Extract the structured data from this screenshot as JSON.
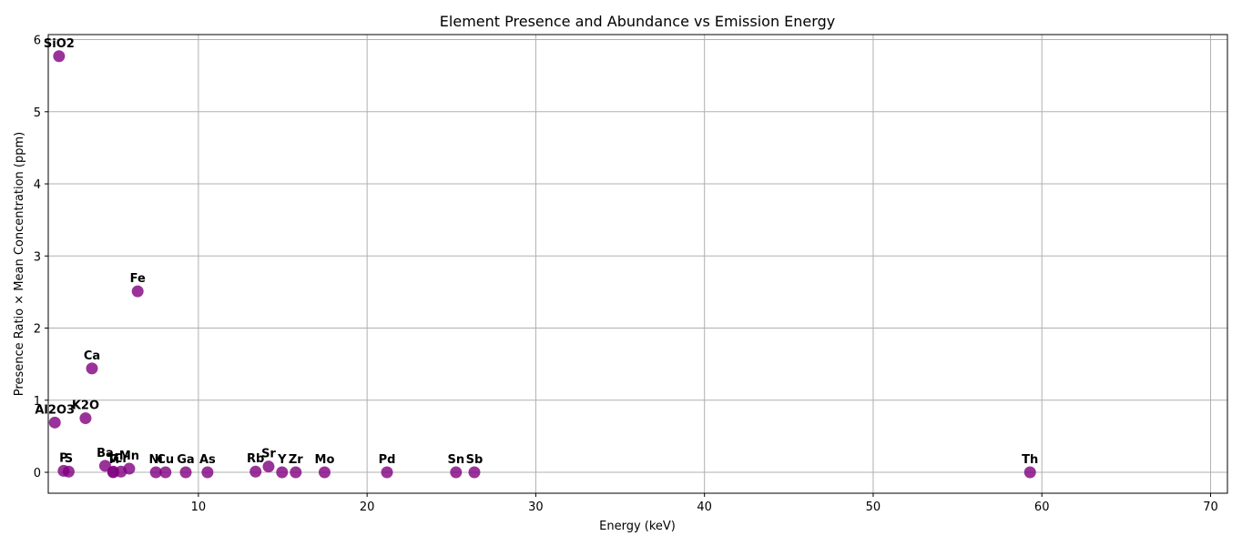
{
  "chart_data": {
    "type": "scatter",
    "title": "Element Presence and Abundance vs Emission Energy",
    "xlabel": "Energy (keV)",
    "ylabel": "Presence Ratio × Mean Concentration (ppm)",
    "xlim": [
      1.1,
      71.0
    ],
    "ylim": [
      -0.29,
      6.07
    ],
    "xticks": [
      10,
      20,
      30,
      40,
      50,
      60,
      70
    ],
    "yticks": [
      0,
      1,
      2,
      3,
      4,
      5,
      6
    ],
    "grid": true,
    "marker_color": "#800080",
    "points": [
      {
        "label": "SiO2",
        "x": 1.74,
        "y": 5.77
      },
      {
        "label": "Al2O3",
        "x": 1.49,
        "y": 0.69
      },
      {
        "label": "K2O",
        "x": 3.31,
        "y": 0.75
      },
      {
        "label": "Ca",
        "x": 3.69,
        "y": 1.44
      },
      {
        "label": "Fe",
        "x": 6.4,
        "y": 2.51
      },
      {
        "label": "P",
        "x": 2.01,
        "y": 0.02
      },
      {
        "label": "S",
        "x": 2.31,
        "y": 0.01
      },
      {
        "label": "Ba",
        "x": 4.47,
        "y": 0.09
      },
      {
        "label": "Cr",
        "x": 5.41,
        "y": 0.01
      },
      {
        "label": "Ti",
        "x": 4.95,
        "y": 0.0
      },
      {
        "label": "V",
        "x": 4.95,
        "y": 0.01
      },
      {
        "label": "Mn",
        "x": 5.9,
        "y": 0.05
      },
      {
        "label": "Ni",
        "x": 7.48,
        "y": 0.0
      },
      {
        "label": "Cu",
        "x": 8.05,
        "y": 0.0
      },
      {
        "label": "Ga",
        "x": 9.25,
        "y": 0.0
      },
      {
        "label": "As",
        "x": 10.54,
        "y": 0.0
      },
      {
        "label": "Rb",
        "x": 13.39,
        "y": 0.01
      },
      {
        "label": "Sr",
        "x": 14.16,
        "y": 0.08
      },
      {
        "label": "Y",
        "x": 14.96,
        "y": 0.0
      },
      {
        "label": "Zr",
        "x": 15.77,
        "y": 0.0
      },
      {
        "label": "Mo",
        "x": 17.48,
        "y": 0.0
      },
      {
        "label": "Pd",
        "x": 21.18,
        "y": 0.0
      },
      {
        "label": "Sn",
        "x": 25.27,
        "y": 0.0
      },
      {
        "label": "Sb",
        "x": 26.36,
        "y": 0.0
      },
      {
        "label": "Th",
        "x": 59.3,
        "y": 0.0
      }
    ]
  }
}
